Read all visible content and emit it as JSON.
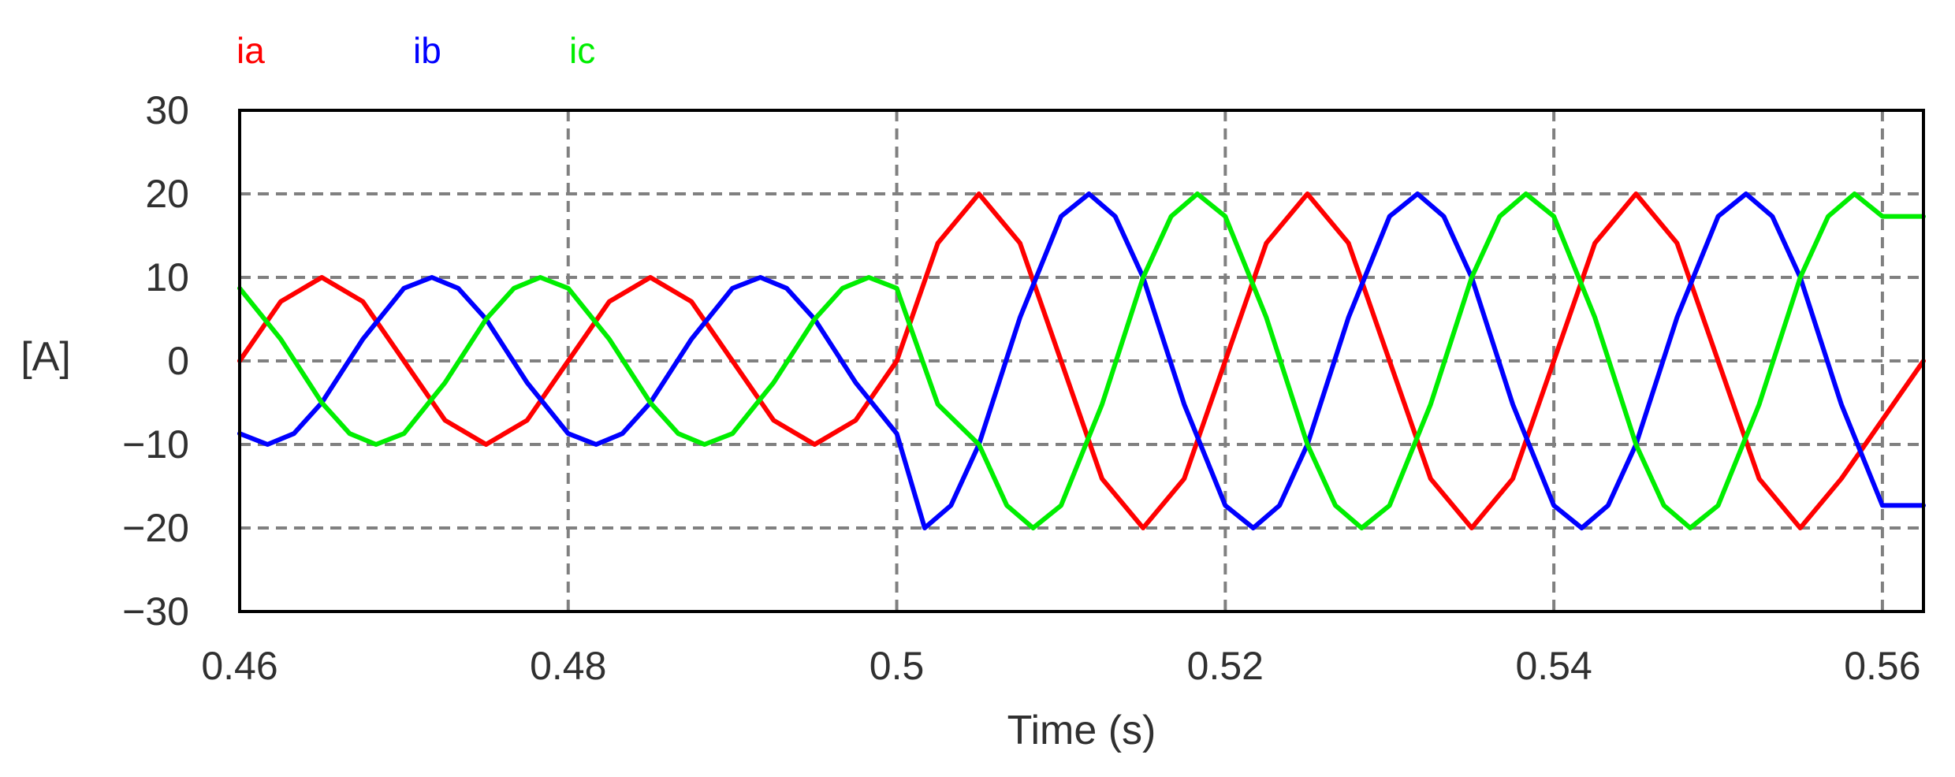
{
  "chart_data": {
    "type": "line",
    "title": "",
    "xlabel": "Time (s)",
    "ylabel": "[A]",
    "xlim": [
      0.46,
      0.5625
    ],
    "ylim": [
      -30,
      30
    ],
    "x_ticks": [
      0.46,
      0.48,
      0.5,
      0.52,
      0.54,
      0.56
    ],
    "x_tick_labels": [
      "0.46",
      "0.48",
      "0.5",
      "0.52",
      "0.54",
      "0.56"
    ],
    "y_ticks": [
      -30,
      -20,
      -10,
      0,
      10,
      20,
      30
    ],
    "y_tick_labels": [
      "−30",
      "−20",
      "−10",
      "0",
      "10",
      "20",
      "30"
    ],
    "grid": true,
    "legend_position": "top-left",
    "series": [
      {
        "name": "ia",
        "color": "#ff0000",
        "points": [
          [
            0.46,
            0
          ],
          [
            0.4625,
            7.1
          ],
          [
            0.465,
            10
          ],
          [
            0.4675,
            7.1
          ],
          [
            0.47,
            0
          ],
          [
            0.4725,
            -7.1
          ],
          [
            0.475,
            -10
          ],
          [
            0.4775,
            -7.1
          ],
          [
            0.48,
            0
          ],
          [
            0.4825,
            7.1
          ],
          [
            0.485,
            10
          ],
          [
            0.4875,
            7.1
          ],
          [
            0.49,
            0
          ],
          [
            0.4925,
            -7.1
          ],
          [
            0.495,
            -10
          ],
          [
            0.4975,
            -7.1
          ],
          [
            0.5,
            0
          ],
          [
            0.5025,
            14.1
          ],
          [
            0.505,
            20
          ],
          [
            0.5075,
            14.1
          ],
          [
            0.51,
            0
          ],
          [
            0.5125,
            -14.1
          ],
          [
            0.515,
            -20
          ],
          [
            0.5175,
            -14.1
          ],
          [
            0.52,
            0
          ],
          [
            0.5225,
            14.1
          ],
          [
            0.525,
            20
          ],
          [
            0.5275,
            14.1
          ],
          [
            0.53,
            0
          ],
          [
            0.5325,
            -14.1
          ],
          [
            0.535,
            -20
          ],
          [
            0.5375,
            -14.1
          ],
          [
            0.54,
            0
          ],
          [
            0.5425,
            14.1
          ],
          [
            0.545,
            20
          ],
          [
            0.5475,
            14.1
          ],
          [
            0.55,
            0
          ],
          [
            0.5525,
            -14.1
          ],
          [
            0.555,
            -20
          ],
          [
            0.5575,
            -14.1
          ],
          [
            0.5625,
            0
          ]
        ]
      },
      {
        "name": "ib",
        "color": "#0000ff",
        "points": [
          [
            0.46,
            -8.7
          ],
          [
            0.4617,
            -10
          ],
          [
            0.4633,
            -8.7
          ],
          [
            0.465,
            -5
          ],
          [
            0.4675,
            2.6
          ],
          [
            0.47,
            8.7
          ],
          [
            0.4717,
            10
          ],
          [
            0.4733,
            8.7
          ],
          [
            0.475,
            5
          ],
          [
            0.4775,
            -2.6
          ],
          [
            0.48,
            -8.7
          ],
          [
            0.4817,
            -10
          ],
          [
            0.4833,
            -8.7
          ],
          [
            0.485,
            -5
          ],
          [
            0.4875,
            2.6
          ],
          [
            0.49,
            8.7
          ],
          [
            0.4917,
            10
          ],
          [
            0.4933,
            8.7
          ],
          [
            0.495,
            5
          ],
          [
            0.4975,
            -2.6
          ],
          [
            0.5,
            -8.7
          ],
          [
            0.5017,
            -20
          ],
          [
            0.5033,
            -17.3
          ],
          [
            0.505,
            -10
          ],
          [
            0.5075,
            5.2
          ],
          [
            0.51,
            17.3
          ],
          [
            0.5117,
            20
          ],
          [
            0.5133,
            17.3
          ],
          [
            0.515,
            10
          ],
          [
            0.5175,
            -5.2
          ],
          [
            0.52,
            -17.3
          ],
          [
            0.5217,
            -20
          ],
          [
            0.5233,
            -17.3
          ],
          [
            0.525,
            -10
          ],
          [
            0.5275,
            5.2
          ],
          [
            0.53,
            17.3
          ],
          [
            0.5317,
            20
          ],
          [
            0.5333,
            17.3
          ],
          [
            0.535,
            10
          ],
          [
            0.5375,
            -5.2
          ],
          [
            0.54,
            -17.3
          ],
          [
            0.5417,
            -20
          ],
          [
            0.5433,
            -17.3
          ],
          [
            0.545,
            -10
          ],
          [
            0.5475,
            5.2
          ],
          [
            0.55,
            17.3
          ],
          [
            0.5517,
            20
          ],
          [
            0.5533,
            17.3
          ],
          [
            0.555,
            10
          ],
          [
            0.5575,
            -5.2
          ],
          [
            0.56,
            -17.3
          ],
          [
            0.5625,
            -17.3
          ]
        ]
      },
      {
        "name": "ic",
        "color": "#00ee00",
        "points": [
          [
            0.46,
            8.7
          ],
          [
            0.4625,
            2.6
          ],
          [
            0.465,
            -5
          ],
          [
            0.4667,
            -8.7
          ],
          [
            0.4683,
            -10
          ],
          [
            0.47,
            -8.7
          ],
          [
            0.4725,
            -2.6
          ],
          [
            0.475,
            5
          ],
          [
            0.4767,
            8.7
          ],
          [
            0.4783,
            10
          ],
          [
            0.48,
            8.7
          ],
          [
            0.4825,
            2.6
          ],
          [
            0.485,
            -5
          ],
          [
            0.4867,
            -8.7
          ],
          [
            0.4883,
            -10
          ],
          [
            0.49,
            -8.7
          ],
          [
            0.4925,
            -2.6
          ],
          [
            0.495,
            5
          ],
          [
            0.4967,
            8.7
          ],
          [
            0.4983,
            10
          ],
          [
            0.5,
            8.7
          ],
          [
            0.5025,
            -5.2
          ],
          [
            0.505,
            -10
          ],
          [
            0.5067,
            -17.3
          ],
          [
            0.5083,
            -20
          ],
          [
            0.51,
            -17.3
          ],
          [
            0.5125,
            -5.2
          ],
          [
            0.515,
            10
          ],
          [
            0.5167,
            17.3
          ],
          [
            0.5183,
            20
          ],
          [
            0.52,
            17.3
          ],
          [
            0.5225,
            5.2
          ],
          [
            0.525,
            -10
          ],
          [
            0.5267,
            -17.3
          ],
          [
            0.5283,
            -20
          ],
          [
            0.53,
            -17.3
          ],
          [
            0.5325,
            -5.2
          ],
          [
            0.535,
            10
          ],
          [
            0.5367,
            17.3
          ],
          [
            0.5383,
            20
          ],
          [
            0.54,
            17.3
          ],
          [
            0.5425,
            5.2
          ],
          [
            0.545,
            -10
          ],
          [
            0.5467,
            -17.3
          ],
          [
            0.5483,
            -20
          ],
          [
            0.55,
            -17.3
          ],
          [
            0.5525,
            -5.2
          ],
          [
            0.555,
            10
          ],
          [
            0.5567,
            17.3
          ],
          [
            0.5583,
            20
          ],
          [
            0.56,
            17.3
          ],
          [
            0.5625,
            17.3
          ]
        ]
      }
    ]
  }
}
